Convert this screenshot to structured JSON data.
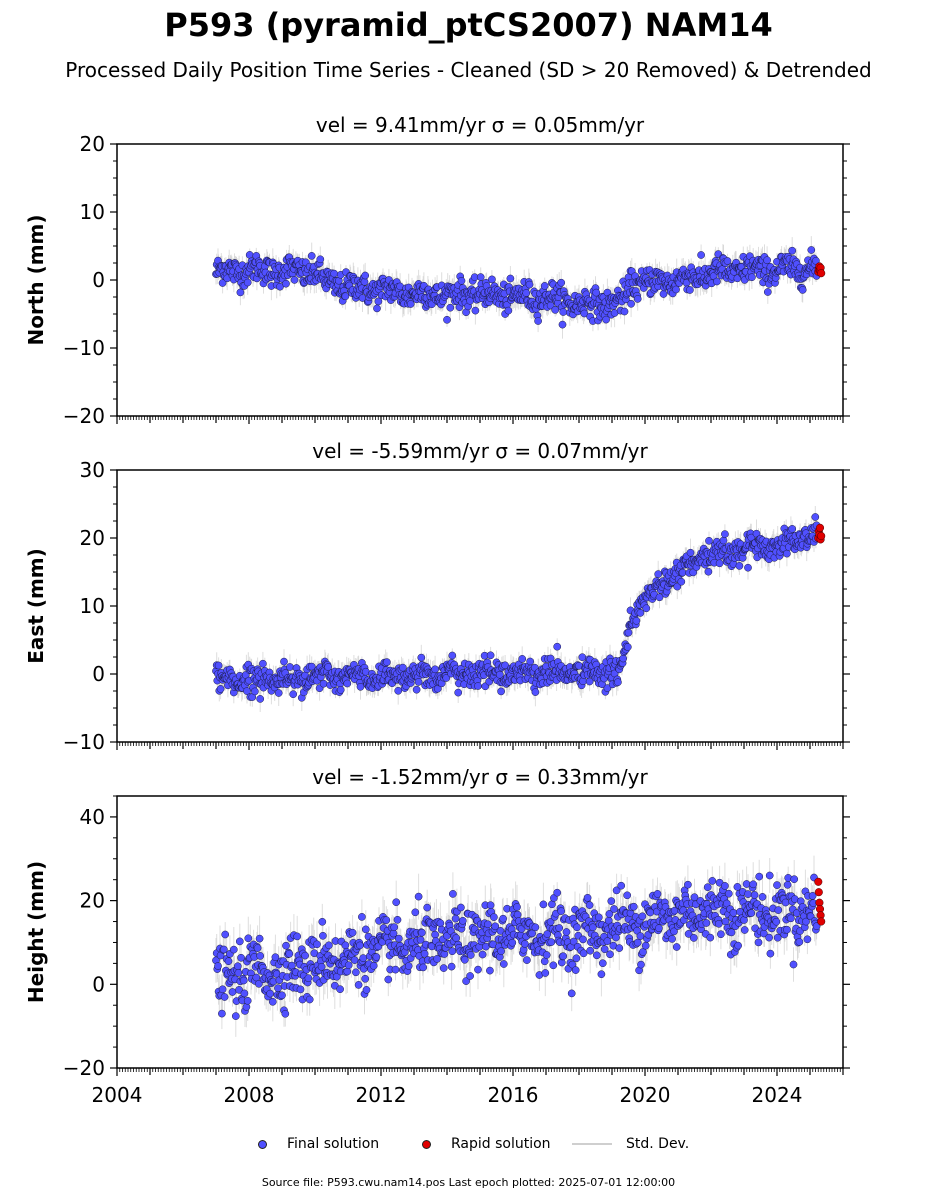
{
  "header": {
    "title": "P593 (pyramid_ptCS2007) NAM14",
    "subtitle": "Processed Daily Position Time Series - Cleaned (SD > 20 Removed) & Detrended"
  },
  "legend": {
    "final_label": "Final solution",
    "rapid_label": "Rapid solution",
    "std_label": "Std. Dev."
  },
  "footer": {
    "source_text": "Source file: P593.cwu.nam14.pos  Last epoch plotted: 2025-07-01 12:00:00"
  },
  "colors": {
    "final": "#5050ff",
    "rapid": "#e00000",
    "std_dev": "#c8c8c8"
  },
  "chart_data": [
    {
      "type": "scatter",
      "component": "north",
      "title": "vel = 9.41mm/yr   σ = 0.05mm/yr",
      "ylabel": "North (mm)",
      "xlim": [
        2004,
        2026
      ],
      "ylim": [
        -20,
        20
      ],
      "yticks": [
        -20,
        -10,
        0,
        10,
        20
      ],
      "xticks": [
        2004,
        2008,
        2012,
        2016,
        2020,
        2024
      ],
      "trend_points": [
        [
          2007.0,
          1.2
        ],
        [
          2008.0,
          1.5
        ],
        [
          2009.0,
          1.3
        ],
        [
          2010.0,
          1.2
        ],
        [
          2010.3,
          -0.3
        ],
        [
          2011.0,
          -1.0
        ],
        [
          2012.0,
          -1.5
        ],
        [
          2013.0,
          -2.0
        ],
        [
          2014.0,
          -2.2
        ],
        [
          2015.0,
          -2.0
        ],
        [
          2016.0,
          -2.5
        ],
        [
          2017.0,
          -2.5
        ],
        [
          2018.0,
          -3.5
        ],
        [
          2019.0,
          -3.5
        ],
        [
          2019.4,
          -3.0
        ],
        [
          2019.6,
          -0.3
        ],
        [
          2020.0,
          -0.5
        ],
        [
          2021.0,
          0.0
        ],
        [
          2022.0,
          1.0
        ],
        [
          2023.0,
          1.5
        ],
        [
          2024.0,
          1.5
        ],
        [
          2025.2,
          1.8
        ]
      ],
      "scatter_sd": 1.4,
      "std_dev_mm": 1.5,
      "final_range": [
        2007.0,
        2025.2
      ],
      "rapid_range": [
        2025.2,
        2025.5
      ],
      "rapid_values": [
        1.2,
        1.6,
        2.0,
        1.4,
        1.8,
        1.0
      ]
    },
    {
      "type": "scatter",
      "component": "east",
      "title": "vel = -5.59mm/yr   σ = 0.07mm/yr",
      "ylabel": "East (mm)",
      "xlim": [
        2004,
        2026
      ],
      "ylim": [
        -10,
        30
      ],
      "yticks": [
        -10,
        0,
        10,
        20,
        30
      ],
      "xticks": [
        2004,
        2008,
        2012,
        2016,
        2020,
        2024
      ],
      "trend_points": [
        [
          2007.0,
          -0.8
        ],
        [
          2008.0,
          -0.8
        ],
        [
          2010.0,
          -0.5
        ],
        [
          2012.0,
          -0.3
        ],
        [
          2014.0,
          0.0
        ],
        [
          2016.0,
          0.2
        ],
        [
          2018.0,
          0.2
        ],
        [
          2019.2,
          0.0
        ],
        [
          2019.4,
          4.0
        ],
        [
          2019.6,
          8.0
        ],
        [
          2020.0,
          11.0
        ],
        [
          2021.0,
          15.0
        ],
        [
          2022.0,
          17.5
        ],
        [
          2023.0,
          18.5
        ],
        [
          2024.0,
          19.0
        ],
        [
          2025.2,
          20.5
        ]
      ],
      "scatter_sd": 1.3,
      "std_dev_mm": 1.5,
      "final_range": [
        2007.0,
        2025.2
      ],
      "rapid_range": [
        2025.2,
        2025.5
      ],
      "rapid_values": [
        20.0,
        21.0,
        20.5,
        21.5,
        19.8,
        20.3
      ]
    },
    {
      "type": "scatter",
      "component": "height",
      "title": "vel = -1.52mm/yr   σ = 0.33mm/yr",
      "ylabel": "Height (mm)",
      "xlim": [
        2004,
        2026
      ],
      "ylim": [
        -20,
        45
      ],
      "yticks": [
        -20,
        0,
        20,
        40
      ],
      "xticks": [
        2004,
        2008,
        2012,
        2016,
        2020,
        2024
      ],
      "trend_points": [
        [
          2007.0,
          0.0
        ],
        [
          2008.0,
          3.0
        ],
        [
          2009.0,
          3.0
        ],
        [
          2010.0,
          5.0
        ],
        [
          2012.0,
          8.0
        ],
        [
          2014.0,
          10.0
        ],
        [
          2016.0,
          12.0
        ],
        [
          2018.0,
          12.0
        ],
        [
          2020.0,
          15.0
        ],
        [
          2022.0,
          18.0
        ],
        [
          2024.0,
          17.0
        ],
        [
          2025.2,
          18.0
        ]
      ],
      "scatter_sd": 5.0,
      "std_dev_mm": 4.0,
      "final_range": [
        2007.0,
        2025.2
      ],
      "rapid_range": [
        2025.2,
        2025.5
      ],
      "rapid_values": [
        24.5,
        22.0,
        19.5,
        18.0,
        16.5,
        15.0
      ]
    }
  ]
}
